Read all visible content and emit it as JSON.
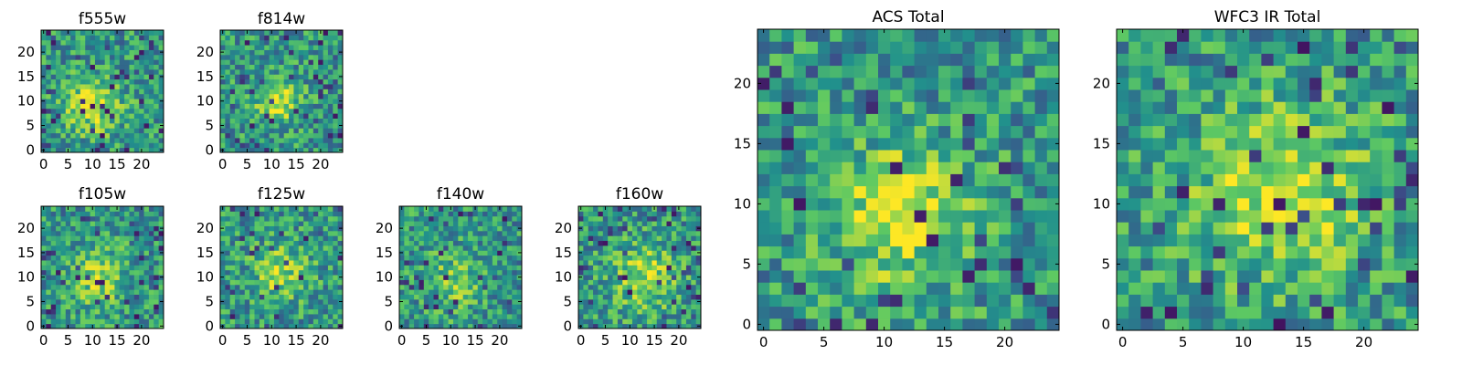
{
  "chart_data": [
    {
      "id": "f555w",
      "type": "heatmap",
      "title": "f555w",
      "grid_size": 25,
      "xlim": [
        0,
        24
      ],
      "ylim": [
        0,
        24
      ],
      "xticks": [
        "0",
        "5",
        "10",
        "15",
        "20"
      ],
      "yticks": [
        "0",
        "5",
        "10",
        "15",
        "20"
      ],
      "seed": 11,
      "blob": {
        "x": 10,
        "y": 9,
        "sigma": 4,
        "amp": 0.35
      }
    },
    {
      "id": "f814w",
      "type": "heatmap",
      "title": "f814w",
      "grid_size": 25,
      "xlim": [
        0,
        24
      ],
      "ylim": [
        0,
        24
      ],
      "xticks": [
        "0",
        "5",
        "10",
        "15",
        "20"
      ],
      "yticks": [
        "0",
        "5",
        "10",
        "15",
        "20"
      ],
      "seed": 23,
      "blob": {
        "x": 11,
        "y": 10,
        "sigma": 3,
        "amp": 0.45
      }
    },
    {
      "id": "f105w",
      "type": "heatmap",
      "title": "f105w",
      "grid_size": 25,
      "xlim": [
        0,
        24
      ],
      "ylim": [
        0,
        24
      ],
      "xticks": [
        "0",
        "5",
        "10",
        "15",
        "20"
      ],
      "yticks": [
        "0",
        "5",
        "10",
        "15",
        "20"
      ],
      "seed": 37,
      "blob": {
        "x": 11,
        "y": 10,
        "sigma": 4,
        "amp": 0.3
      }
    },
    {
      "id": "f125w",
      "type": "heatmap",
      "title": "f125w",
      "grid_size": 25,
      "xlim": [
        0,
        24
      ],
      "ylim": [
        0,
        24
      ],
      "xticks": [
        "0",
        "5",
        "10",
        "15",
        "20"
      ],
      "yticks": [
        "0",
        "5",
        "10",
        "15",
        "20"
      ],
      "seed": 41,
      "blob": {
        "x": 12,
        "y": 11,
        "sigma": 4,
        "amp": 0.3
      }
    },
    {
      "id": "f140w",
      "type": "heatmap",
      "title": "f140w",
      "grid_size": 25,
      "xlim": [
        0,
        24
      ],
      "ylim": [
        0,
        24
      ],
      "xticks": [
        "0",
        "5",
        "10",
        "15",
        "20"
      ],
      "yticks": [
        "0",
        "5",
        "10",
        "15",
        "20"
      ],
      "seed": 53,
      "blob": {
        "x": 11,
        "y": 9,
        "sigma": 4,
        "amp": 0.25
      }
    },
    {
      "id": "f160w",
      "type": "heatmap",
      "title": "f160w",
      "grid_size": 25,
      "xlim": [
        0,
        24
      ],
      "ylim": [
        0,
        24
      ],
      "xticks": [
        "0",
        "5",
        "10",
        "15",
        "20"
      ],
      "yticks": [
        "0",
        "5",
        "10",
        "15",
        "20"
      ],
      "seed": 67,
      "blob": {
        "x": 13,
        "y": 10,
        "sigma": 5,
        "amp": 0.3
      }
    },
    {
      "id": "acs-total",
      "type": "heatmap",
      "title": "ACS Total",
      "grid_size": 25,
      "xlim": [
        0,
        24
      ],
      "ylim": [
        0,
        24
      ],
      "xticks": [
        "0",
        "5",
        "10",
        "15",
        "20"
      ],
      "yticks": [
        "0",
        "5",
        "10",
        "15",
        "20"
      ],
      "seed": 79,
      "blob": {
        "x": 11,
        "y": 9,
        "sigma": 4,
        "amp": 0.4
      }
    },
    {
      "id": "wfc3-ir-total",
      "type": "heatmap",
      "title": "WFC3 IR Total",
      "grid_size": 25,
      "xlim": [
        0,
        24
      ],
      "ylim": [
        0,
        24
      ],
      "xticks": [
        "0",
        "5",
        "10",
        "15",
        "20"
      ],
      "yticks": [
        "0",
        "5",
        "10",
        "15",
        "20"
      ],
      "seed": 97,
      "blob": {
        "x": 13,
        "y": 11,
        "sigma": 5,
        "amp": 0.4
      }
    }
  ],
  "colors": {
    "viridis": [
      "#440154",
      "#3b528b",
      "#21918c",
      "#5ec962",
      "#fde725"
    ],
    "axis": "#000000",
    "background": "#ffffff"
  }
}
